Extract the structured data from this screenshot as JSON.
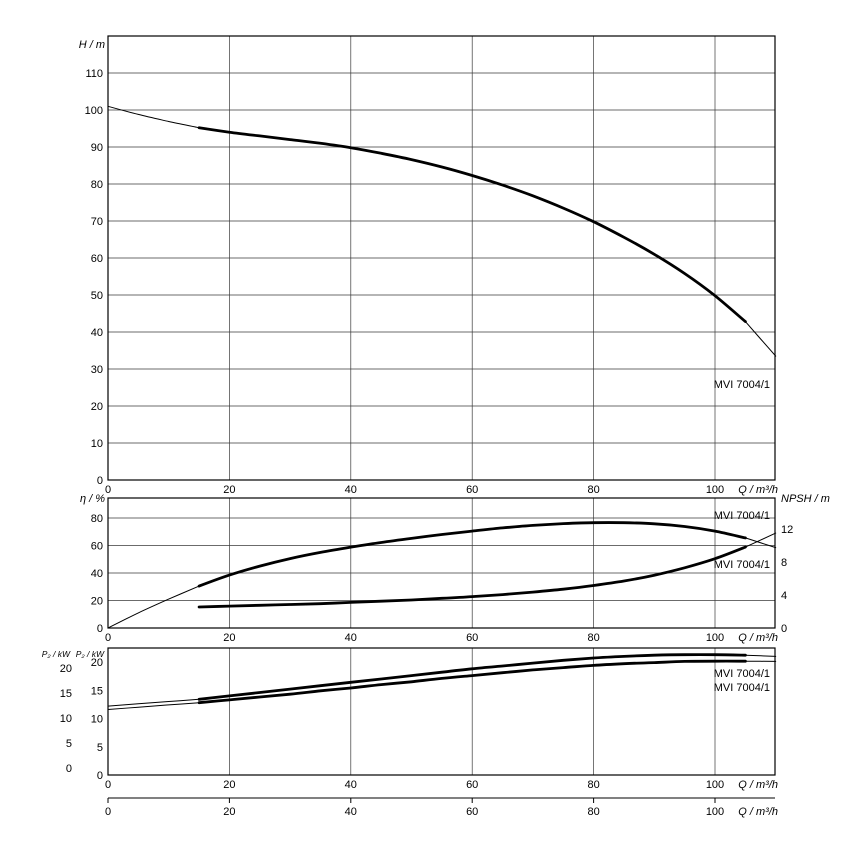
{
  "page": {
    "background": "#ffffff"
  },
  "colors": {
    "curve": "#000000",
    "grid": "#3a3a3a",
    "frame": "#000000",
    "text": "#000000"
  },
  "chart_data": [
    {
      "id": "head-curve",
      "type": "line",
      "xlabel": "Q / m³/h",
      "ylabel": "H / m",
      "xlim": [
        0,
        110
      ],
      "ylim": [
        0,
        120
      ],
      "grid": true,
      "xticks": [
        0,
        20,
        40,
        60,
        80,
        100
      ],
      "yticks": [
        0,
        10,
        20,
        30,
        40,
        50,
        60,
        70,
        80,
        90,
        100,
        110
      ],
      "series": [
        {
          "name": "MVI 7004/1",
          "axis": "left",
          "bold": [
            15,
            105
          ],
          "x": [
            0,
            5,
            10,
            15,
            20,
            25,
            30,
            35,
            40,
            45,
            50,
            55,
            60,
            65,
            70,
            75,
            80,
            85,
            90,
            95,
            100,
            105,
            110
          ],
          "y": [
            101,
            98.8,
            96.9,
            95.2,
            94,
            93,
            92,
            91,
            89.8,
            88.3,
            86.6,
            84.6,
            82.3,
            79.7,
            76.8,
            73.5,
            69.8,
            65.6,
            61,
            55.8,
            49.8,
            42.8,
            33.5
          ]
        }
      ]
    },
    {
      "id": "efficiency-npsh",
      "type": "line",
      "xlabel": "Q / m³/h",
      "ylabel_left": "η / %",
      "ylabel_right": "NPSH / m",
      "xlim": [
        0,
        110
      ],
      "ylim_left": [
        0,
        94
      ],
      "ylim_right": [
        0,
        15.7
      ],
      "grid": true,
      "xticks": [
        0,
        20,
        40,
        60,
        80,
        100
      ],
      "yticks_left": [
        0,
        20,
        40,
        60,
        80
      ],
      "yticks_right": [
        0,
        4,
        8,
        12
      ],
      "series": [
        {
          "name": "MVI 7004/1",
          "axis": "right",
          "bold": [
            15,
            105
          ],
          "x": [
            15,
            20,
            25,
            30,
            35,
            40,
            45,
            50,
            55,
            60,
            65,
            70,
            75,
            80,
            85,
            90,
            95,
            100,
            105,
            110
          ],
          "y": [
            2.55,
            2.65,
            2.75,
            2.85,
            2.95,
            3.1,
            3.25,
            3.4,
            3.6,
            3.8,
            4.05,
            4.35,
            4.7,
            5.15,
            5.7,
            6.4,
            7.3,
            8.4,
            9.8,
            11.5
          ]
        },
        {
          "name": "MVI 7004/1",
          "axis": "left",
          "bold": [
            15,
            105
          ],
          "x": [
            0,
            5,
            10,
            15,
            20,
            25,
            30,
            35,
            40,
            45,
            50,
            55,
            60,
            65,
            70,
            75,
            80,
            85,
            90,
            95,
            100,
            105,
            110
          ],
          "y": [
            0,
            11,
            21,
            30.5,
            38.5,
            45,
            50.5,
            55,
            58.8,
            62.2,
            65.2,
            68,
            70.5,
            72.8,
            74.6,
            75.9,
            76.6,
            76.6,
            75.8,
            73.8,
            70.5,
            65.5,
            58.5
          ]
        }
      ]
    },
    {
      "id": "power",
      "type": "line",
      "xlabel": "Q / m³/h",
      "ylabel_left": "P₂ / kW",
      "ylabel_outer": "P₂ / kW",
      "xlim": [
        0,
        110
      ],
      "ylim": [
        0,
        22.5
      ],
      "grid": true,
      "xticks": [
        0,
        20,
        40,
        60,
        80,
        100
      ],
      "yticks_left": [
        0,
        5,
        10,
        15,
        20
      ],
      "yticks_outer": [
        0,
        5,
        10,
        15,
        20
      ],
      "series": [
        {
          "name": "MVI 7004/1",
          "axis": "left",
          "bold": [
            15,
            105
          ],
          "x": [
            0,
            5,
            10,
            15,
            20,
            25,
            30,
            35,
            40,
            45,
            50,
            55,
            60,
            65,
            70,
            75,
            80,
            85,
            90,
            95,
            100,
            105,
            110
          ],
          "y": [
            12.2,
            12.6,
            13,
            13.4,
            14,
            14.6,
            15.2,
            15.8,
            16.4,
            17,
            17.6,
            18.2,
            18.8,
            19.3,
            19.8,
            20.3,
            20.7,
            21,
            21.2,
            21.3,
            21.3,
            21.2,
            21
          ]
        },
        {
          "name": "MVI 7004/1",
          "axis": "left",
          "bold": [
            15,
            105
          ],
          "x": [
            0,
            5,
            10,
            15,
            20,
            25,
            30,
            35,
            40,
            45,
            50,
            55,
            60,
            65,
            70,
            75,
            80,
            85,
            90,
            95,
            100,
            105,
            110
          ],
          "y": [
            11.6,
            12,
            12.4,
            12.8,
            13.3,
            13.8,
            14.3,
            14.9,
            15.4,
            16,
            16.5,
            17.1,
            17.6,
            18.1,
            18.6,
            19,
            19.4,
            19.7,
            19.9,
            20.1,
            20.15,
            20.15,
            20.1
          ]
        }
      ]
    }
  ],
  "extra_axis": {
    "label": "Q / m³/h",
    "ticks": [
      0,
      20,
      40,
      60,
      80,
      100
    ]
  }
}
